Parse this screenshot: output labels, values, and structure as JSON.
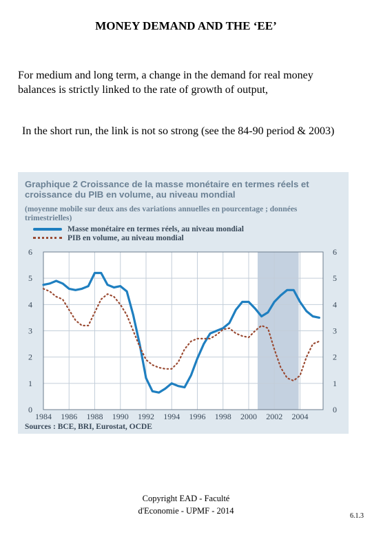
{
  "slide": {
    "title": "MONEY DEMAND AND THE ‘EE’",
    "paragraph1": "For medium and long term, a change in the demand for real money balances is strictly linked to the rate of growth of output,",
    "paragraph2": "In the short run, the link is not so strong (see the 84-90 period & 2003)",
    "footer_line1": "Copyright EAD - Faculté",
    "footer_line2": "d'Economie - UPMF - 2014",
    "page_number": "6.1.3"
  },
  "figure": {
    "title": "Graphique 2  Croissance de la masse monétaire en termes réels et croissance du PIB en volume, au niveau mondial",
    "subtitle": "(moyenne mobile sur deux ans des variations annuelles en pourcentage ; données trimestrielles)",
    "source": "Sources : BCE, BRI, Eurostat, OCDE",
    "background_color": "#dfe8ef",
    "shaded_band_color": "#c4d1e0"
  },
  "chart_data": {
    "type": "line",
    "title": "Graphique 2  Croissance de la masse monétaire en termes réels et croissance du PIB en volume, au niveau mondial",
    "xlim": [
      1984,
      2005.8
    ],
    "ylim": [
      0,
      6
    ],
    "x_ticks": [
      "1984",
      "1986",
      "1988",
      "1990",
      "1992",
      "1994",
      "1996",
      "1998",
      "2000",
      "2002",
      "2004"
    ],
    "y_ticks": [
      "0",
      "1",
      "2",
      "3",
      "4",
      "5",
      "6"
    ],
    "grid": true,
    "shaded_region": [
      2000.7,
      2003.9
    ],
    "legend_position": "top-left",
    "series": [
      {
        "name": "Masse monétaire en termes réels, au niveau mondial",
        "style": "solid",
        "color": "#1f7fc0",
        "x": [
          1984,
          1984.5,
          1985,
          1985.5,
          1986,
          1986.5,
          1987,
          1987.5,
          1988,
          1988.5,
          1989,
          1989.5,
          1990,
          1990.5,
          1991,
          1991.5,
          1992,
          1992.5,
          1993,
          1993.5,
          1994,
          1994.5,
          1995,
          1995.5,
          1996,
          1996.5,
          1997,
          1997.5,
          1998,
          1998.5,
          1999,
          1999.5,
          2000,
          2000.5,
          2001,
          2001.5,
          2002,
          2002.5,
          2003,
          2003.5,
          2004,
          2004.5,
          2005,
          2005.5
        ],
        "y": [
          4.75,
          4.8,
          4.9,
          4.8,
          4.6,
          4.55,
          4.6,
          4.7,
          5.2,
          5.2,
          4.75,
          4.65,
          4.7,
          4.5,
          3.6,
          2.5,
          1.2,
          0.7,
          0.65,
          0.8,
          1.0,
          0.9,
          0.85,
          1.3,
          1.95,
          2.5,
          2.9,
          3.0,
          3.1,
          3.3,
          3.8,
          4.1,
          4.1,
          3.85,
          3.55,
          3.7,
          4.1,
          4.35,
          4.55,
          4.55,
          4.1,
          3.75,
          3.55,
          3.5
        ]
      },
      {
        "name": "PIB en volume, au niveau mondial",
        "style": "dotted",
        "color": "#9a4a32",
        "x": [
          1984,
          1984.5,
          1985,
          1985.5,
          1986,
          1986.5,
          1987,
          1987.5,
          1988,
          1988.5,
          1989,
          1989.5,
          1990,
          1990.5,
          1991,
          1991.5,
          1992,
          1992.5,
          1993,
          1993.5,
          1994,
          1994.5,
          1995,
          1995.5,
          1996,
          1996.5,
          1997,
          1997.5,
          1998,
          1998.5,
          1999,
          1999.5,
          2000,
          2000.5,
          2001,
          2001.5,
          2002,
          2002.5,
          2003,
          2003.5,
          2004,
          2004.5,
          2005,
          2005.5
        ],
        "y": [
          4.6,
          4.5,
          4.3,
          4.2,
          3.8,
          3.4,
          3.2,
          3.2,
          3.7,
          4.2,
          4.4,
          4.3,
          4.0,
          3.6,
          3.0,
          2.4,
          1.9,
          1.7,
          1.6,
          1.55,
          1.55,
          1.8,
          2.3,
          2.6,
          2.7,
          2.7,
          2.7,
          2.85,
          3.05,
          3.1,
          2.9,
          2.8,
          2.75,
          3.0,
          3.2,
          3.1,
          2.3,
          1.6,
          1.2,
          1.1,
          1.3,
          2.0,
          2.5,
          2.6
        ]
      }
    ]
  }
}
